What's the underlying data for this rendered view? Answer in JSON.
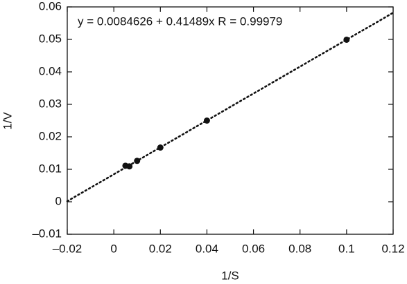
{
  "chart_data": {
    "type": "scatter",
    "x_label": "1/S",
    "y_label": "1/V",
    "annotation": "y = 0.0084626 + 0.41489x R = 0.99979",
    "xlim": [
      -0.02,
      0.12
    ],
    "ylim": [
      -0.01,
      0.06
    ],
    "xticks": [
      {
        "value": -0.02,
        "label": "–0.02"
      },
      0,
      0.02,
      0.04,
      0.06,
      0.08,
      0.1,
      0.12
    ],
    "yticks": [
      {
        "value": -0.01,
        "label": "–0.01"
      },
      0,
      0.01,
      0.02,
      0.03,
      0.04,
      0.05,
      0.06
    ],
    "series": [
      {
        "color": "#111111",
        "x": [
          0.005,
          0.0067,
          0.01,
          0.02,
          0.04,
          0.1
        ],
        "values": [
          0.0111,
          0.0109,
          0.0126,
          0.0167,
          0.025,
          0.0499
        ]
      }
    ],
    "fit_line": {
      "color": "#111111",
      "x": [
        -0.02,
        0.12
      ],
      "values": [
        0.00017,
        0.0582
      ]
    }
  }
}
